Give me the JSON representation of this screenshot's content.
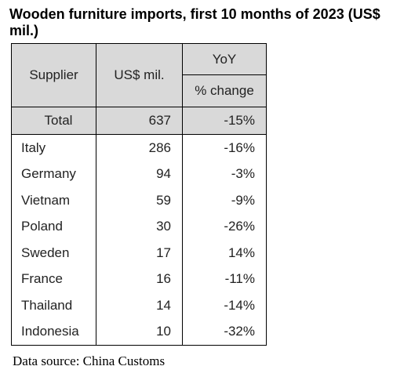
{
  "title": "Wooden furniture imports, first 10 months of 2023 (US$ mil.)",
  "source": "Data source: China Customs",
  "chart_data": {
    "type": "table",
    "title": "Wooden furniture imports, first 10 months of 2023 (US$ mil.)",
    "columns": [
      "Supplier",
      "US$ mil.",
      "YoY % change"
    ],
    "header": {
      "supplier": "Supplier",
      "value": "US$ mil.",
      "yoy_top": "YoY",
      "yoy_bottom": "% change"
    },
    "total": {
      "supplier": "Total",
      "value": "637",
      "yoy": "-15%"
    },
    "rows": [
      {
        "supplier": "Italy",
        "value": "286",
        "yoy": "-16%"
      },
      {
        "supplier": "Germany",
        "value": "94",
        "yoy": "-3%"
      },
      {
        "supplier": "Vietnam",
        "value": "59",
        "yoy": "-9%"
      },
      {
        "supplier": "Poland",
        "value": "30",
        "yoy": "-26%"
      },
      {
        "supplier": "Sweden",
        "value": "17",
        "yoy": "14%"
      },
      {
        "supplier": "France",
        "value": "16",
        "yoy": "-11%"
      },
      {
        "supplier": "Thailand",
        "value": "14",
        "yoy": "-14%"
      },
      {
        "supplier": "Indonesia",
        "value": "10",
        "yoy": "-32%"
      }
    ],
    "colors": {
      "header_bg": "#d9d9d9",
      "border": "#000000"
    }
  }
}
